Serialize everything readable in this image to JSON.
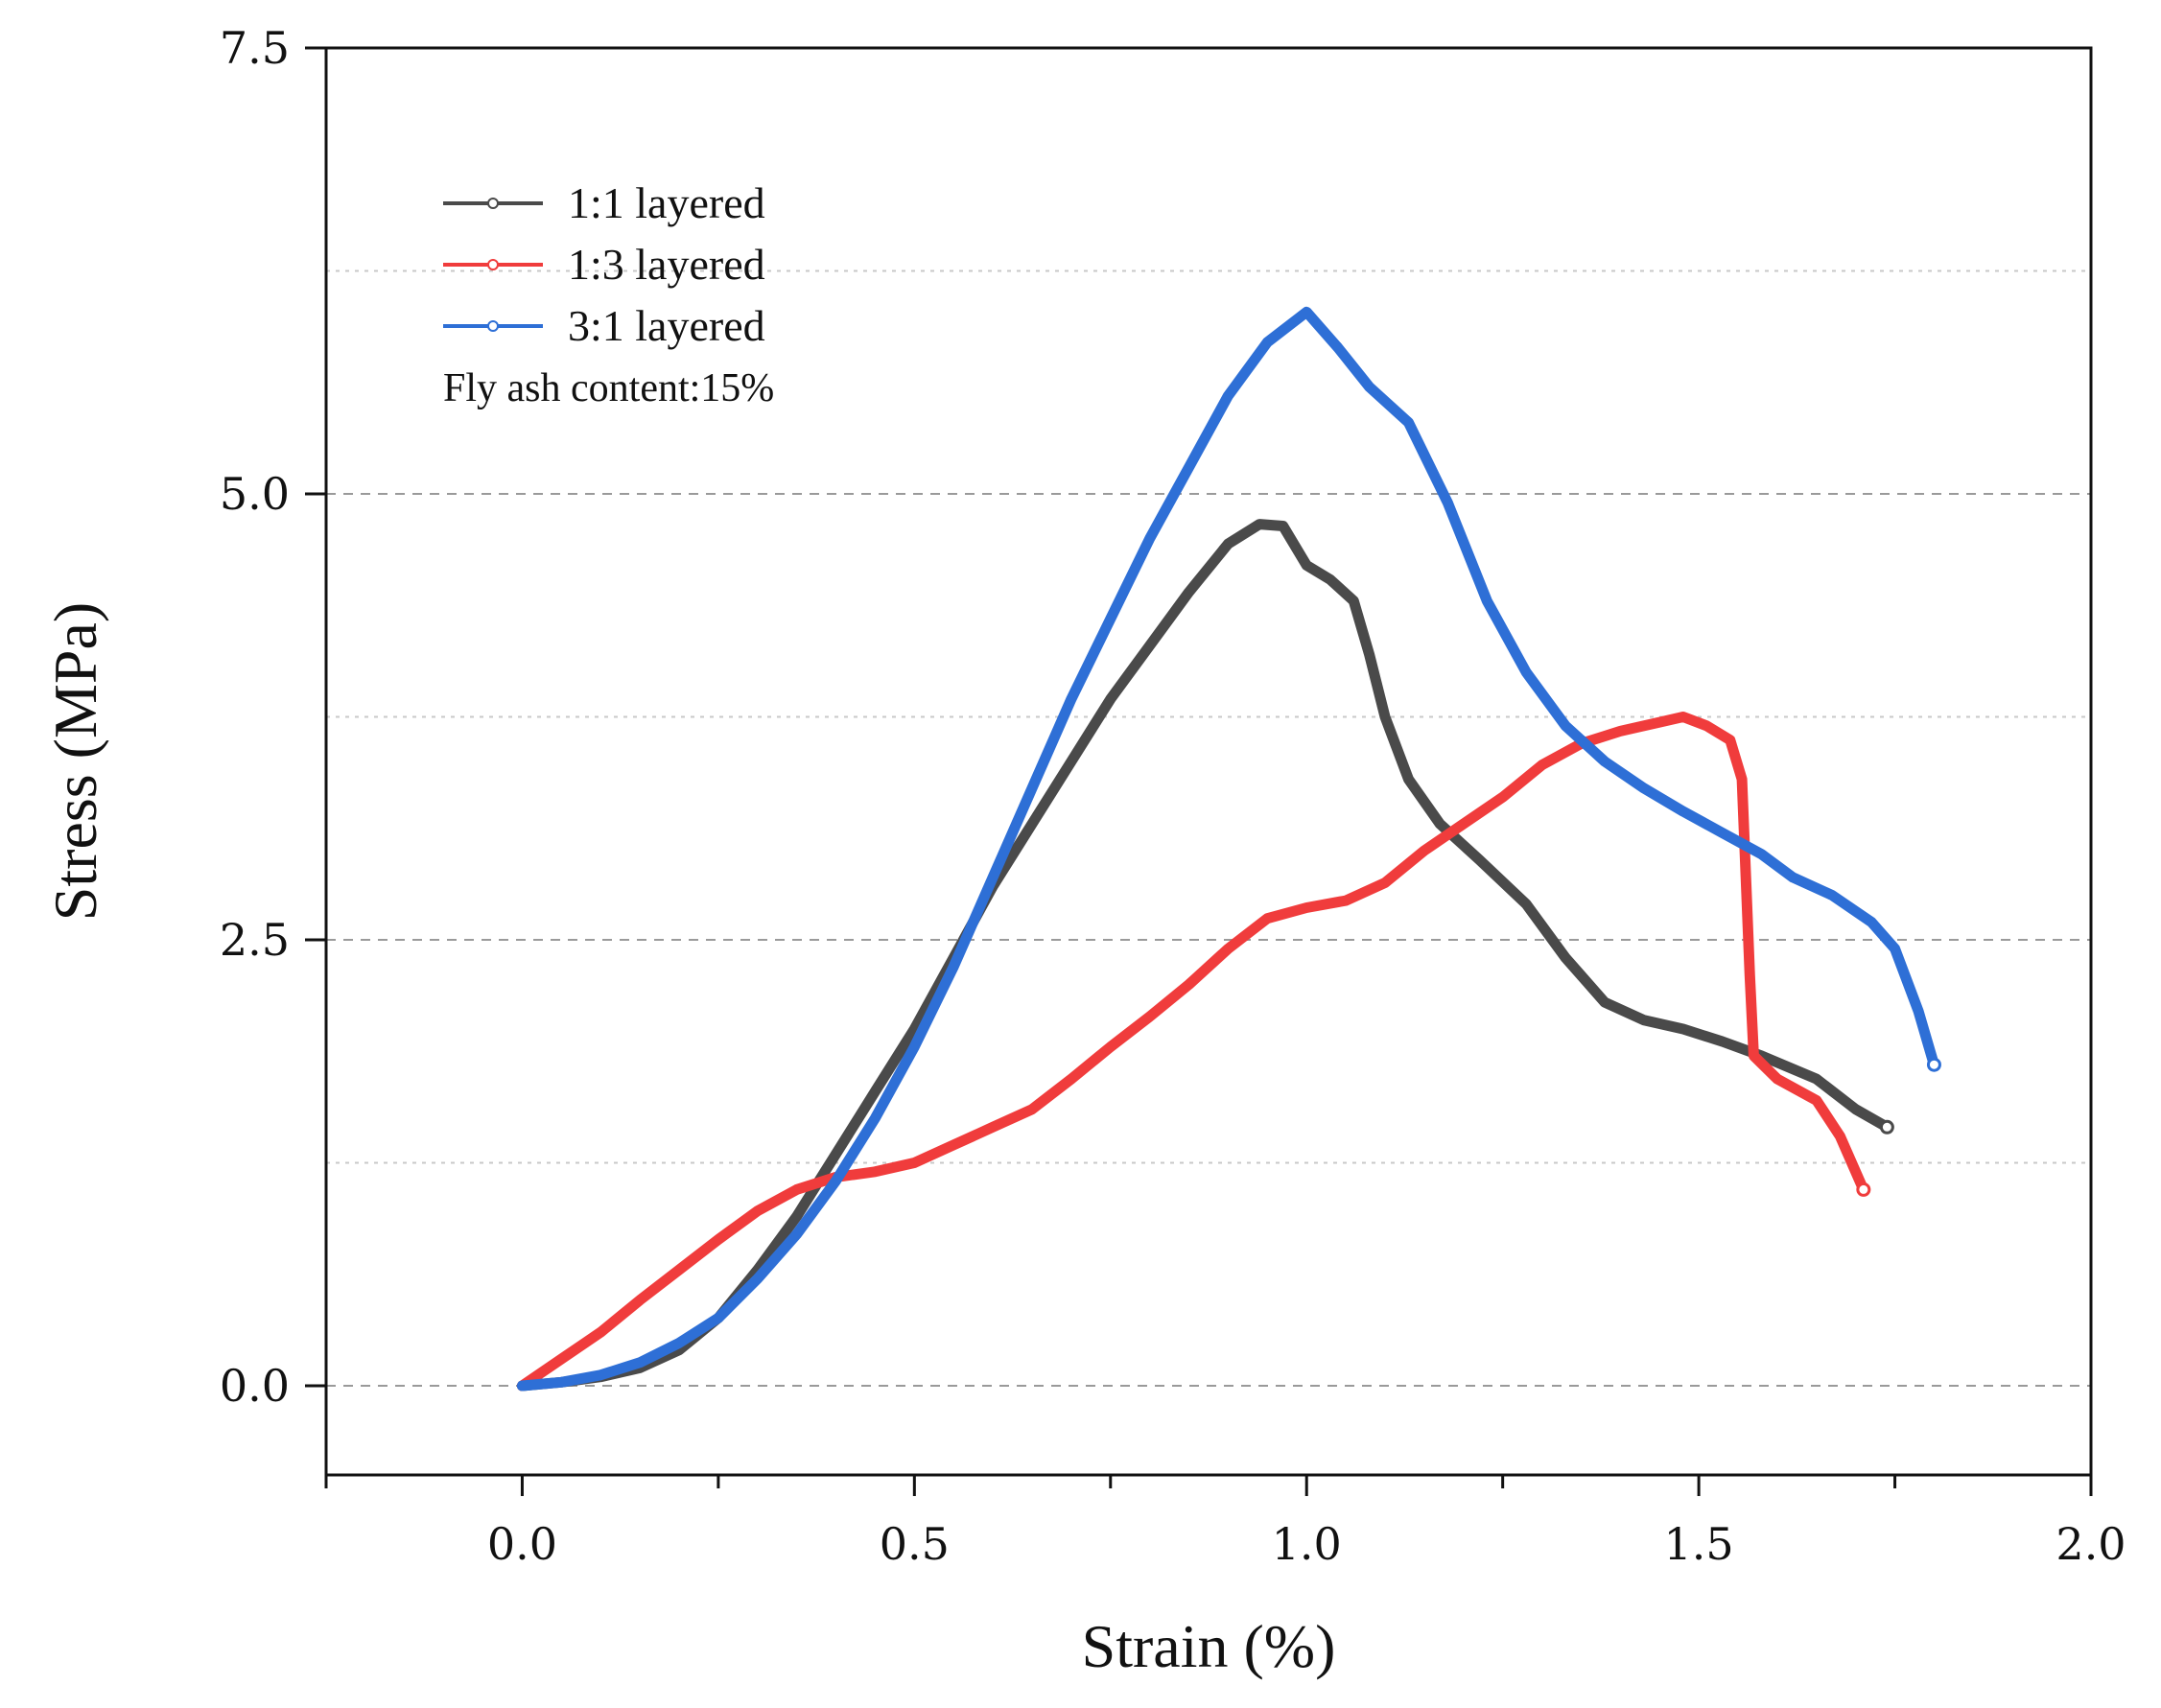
{
  "chart_data": {
    "type": "line",
    "title": "",
    "xlabel": "Strain (%)",
    "ylabel": "Stress (MPa)",
    "xlim": [
      -0.25,
      2.0
    ],
    "ylim": [
      -0.5,
      7.5
    ],
    "x_ticks": [
      0.0,
      0.5,
      1.0,
      1.5,
      2.0
    ],
    "x_tick_labels": [
      "0.0",
      "0.5",
      "1.0",
      "1.5",
      "2.0"
    ],
    "y_ticks": [
      0.0,
      2.5,
      5.0,
      7.5
    ],
    "y_tick_labels": [
      "0.0",
      "2.5",
      "5.0",
      "7.5"
    ],
    "grid": "horizontal dashed",
    "legend_position": "top-left",
    "annotation": "Fly ash content:15%",
    "series": [
      {
        "name": "1:1 layered",
        "color": "#4a4a4a",
        "points": [
          [
            0.0,
            0.0
          ],
          [
            0.05,
            0.02
          ],
          [
            0.1,
            0.05
          ],
          [
            0.15,
            0.1
          ],
          [
            0.2,
            0.2
          ],
          [
            0.25,
            0.38
          ],
          [
            0.3,
            0.65
          ],
          [
            0.35,
            0.95
          ],
          [
            0.4,
            1.3
          ],
          [
            0.45,
            1.65
          ],
          [
            0.5,
            2.0
          ],
          [
            0.55,
            2.4
          ],
          [
            0.6,
            2.8
          ],
          [
            0.65,
            3.15
          ],
          [
            0.7,
            3.5
          ],
          [
            0.75,
            3.85
          ],
          [
            0.8,
            4.15
          ],
          [
            0.85,
            4.45
          ],
          [
            0.9,
            4.72
          ],
          [
            0.94,
            4.83
          ],
          [
            0.97,
            4.82
          ],
          [
            1.0,
            4.6
          ],
          [
            1.03,
            4.52
          ],
          [
            1.06,
            4.4
          ],
          [
            1.08,
            4.1
          ],
          [
            1.1,
            3.75
          ],
          [
            1.13,
            3.4
          ],
          [
            1.17,
            3.15
          ],
          [
            1.22,
            2.95
          ],
          [
            1.28,
            2.7
          ],
          [
            1.33,
            2.4
          ],
          [
            1.38,
            2.15
          ],
          [
            1.43,
            2.05
          ],
          [
            1.48,
            2.0
          ],
          [
            1.53,
            1.93
          ],
          [
            1.58,
            1.85
          ],
          [
            1.65,
            1.72
          ],
          [
            1.7,
            1.55
          ],
          [
            1.74,
            1.45
          ]
        ]
      },
      {
        "name": "1:3 layered",
        "color": "#f03c3c",
        "points": [
          [
            0.0,
            0.0
          ],
          [
            0.05,
            0.15
          ],
          [
            0.1,
            0.3
          ],
          [
            0.15,
            0.48
          ],
          [
            0.2,
            0.65
          ],
          [
            0.25,
            0.82
          ],
          [
            0.3,
            0.98
          ],
          [
            0.35,
            1.1
          ],
          [
            0.4,
            1.17
          ],
          [
            0.45,
            1.2
          ],
          [
            0.5,
            1.25
          ],
          [
            0.55,
            1.35
          ],
          [
            0.6,
            1.45
          ],
          [
            0.65,
            1.55
          ],
          [
            0.7,
            1.72
          ],
          [
            0.75,
            1.9
          ],
          [
            0.8,
            2.07
          ],
          [
            0.85,
            2.25
          ],
          [
            0.9,
            2.45
          ],
          [
            0.95,
            2.62
          ],
          [
            1.0,
            2.68
          ],
          [
            1.05,
            2.72
          ],
          [
            1.1,
            2.82
          ],
          [
            1.15,
            3.0
          ],
          [
            1.2,
            3.15
          ],
          [
            1.25,
            3.3
          ],
          [
            1.3,
            3.48
          ],
          [
            1.35,
            3.6
          ],
          [
            1.4,
            3.67
          ],
          [
            1.45,
            3.72
          ],
          [
            1.48,
            3.75
          ],
          [
            1.51,
            3.7
          ],
          [
            1.54,
            3.62
          ],
          [
            1.555,
            3.4
          ],
          [
            1.56,
            2.85
          ],
          [
            1.565,
            2.3
          ],
          [
            1.57,
            1.85
          ],
          [
            1.6,
            1.72
          ],
          [
            1.65,
            1.6
          ],
          [
            1.68,
            1.4
          ],
          [
            1.71,
            1.1
          ]
        ]
      },
      {
        "name": "3:1 layered",
        "color": "#2e6fd6",
        "points": [
          [
            0.0,
            0.0
          ],
          [
            0.05,
            0.02
          ],
          [
            0.1,
            0.06
          ],
          [
            0.15,
            0.13
          ],
          [
            0.2,
            0.24
          ],
          [
            0.25,
            0.38
          ],
          [
            0.3,
            0.6
          ],
          [
            0.35,
            0.85
          ],
          [
            0.4,
            1.15
          ],
          [
            0.45,
            1.5
          ],
          [
            0.5,
            1.9
          ],
          [
            0.55,
            2.35
          ],
          [
            0.6,
            2.85
          ],
          [
            0.65,
            3.35
          ],
          [
            0.7,
            3.85
          ],
          [
            0.75,
            4.3
          ],
          [
            0.8,
            4.75
          ],
          [
            0.85,
            5.15
          ],
          [
            0.9,
            5.55
          ],
          [
            0.95,
            5.85
          ],
          [
            1.0,
            6.02
          ],
          [
            1.04,
            5.82
          ],
          [
            1.08,
            5.6
          ],
          [
            1.13,
            5.4
          ],
          [
            1.18,
            4.95
          ],
          [
            1.23,
            4.4
          ],
          [
            1.28,
            4.0
          ],
          [
            1.33,
            3.7
          ],
          [
            1.38,
            3.5
          ],
          [
            1.43,
            3.35
          ],
          [
            1.48,
            3.22
          ],
          [
            1.53,
            3.1
          ],
          [
            1.58,
            2.98
          ],
          [
            1.62,
            2.85
          ],
          [
            1.67,
            2.75
          ],
          [
            1.72,
            2.6
          ],
          [
            1.75,
            2.45
          ],
          [
            1.78,
            2.1
          ],
          [
            1.8,
            1.8
          ]
        ]
      }
    ]
  }
}
